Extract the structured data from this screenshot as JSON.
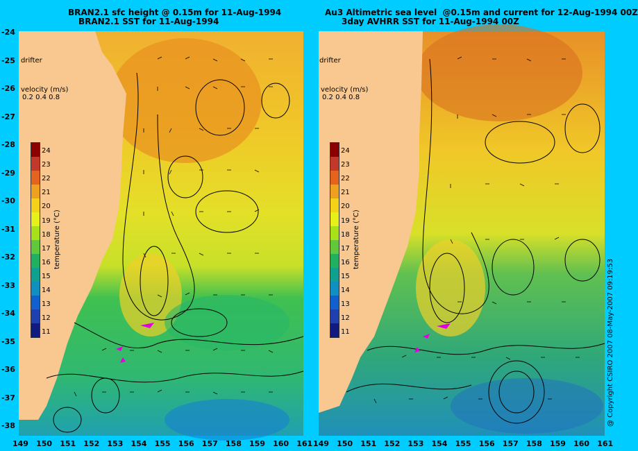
{
  "left": {
    "title_line1": "BRAN2.1 sfc height @ 0.15m for 11-Aug-1994",
    "title_line2": "BRAN2.1 SST for 11-Aug-1994"
  },
  "right": {
    "title_line1": "Au3 Altimetric sea level  @0.15m and current for 12-Aug-1994 00Z",
    "title_line2": "3day AVHRR SST for 11-Aug-1994 00Z"
  },
  "latitudes": [
    "-24",
    "-25",
    "-26",
    "-27",
    "-28",
    "-29",
    "-30",
    "-31",
    "-32",
    "-33",
    "-34",
    "-35",
    "-36",
    "-37",
    "-38"
  ],
  "longitudes": [
    "149",
    "150",
    "151",
    "152",
    "153",
    "154",
    "155",
    "156",
    "157",
    "158",
    "159",
    "160",
    "161"
  ],
  "colorbar": {
    "ticks": [
      "24",
      "23",
      "22",
      "21",
      "20",
      "19",
      "18",
      "17",
      "16",
      "15",
      "14",
      "13",
      "12",
      "11"
    ],
    "label": "temperature (°C)",
    "colors": [
      "#8b0000",
      "#c0392b",
      "#e4631e",
      "#f0a020",
      "#f5d21a",
      "#e8f01a",
      "#a8e01a",
      "#60c83a",
      "#20b060",
      "#10a090",
      "#1090c0",
      "#1060d0",
      "#2040b0",
      "#101a80"
    ]
  },
  "drifter_label": "drifter",
  "velocity": {
    "title": "velocity (m/s)",
    "scale": "0.2 0.4 0.8"
  },
  "copyright": "@ Copyright CSIRO 2007  08-May-2007 09:19:53",
  "colors": {
    "background": "#00ccff",
    "land": "#f8c890",
    "drifter": "#e000e0"
  }
}
